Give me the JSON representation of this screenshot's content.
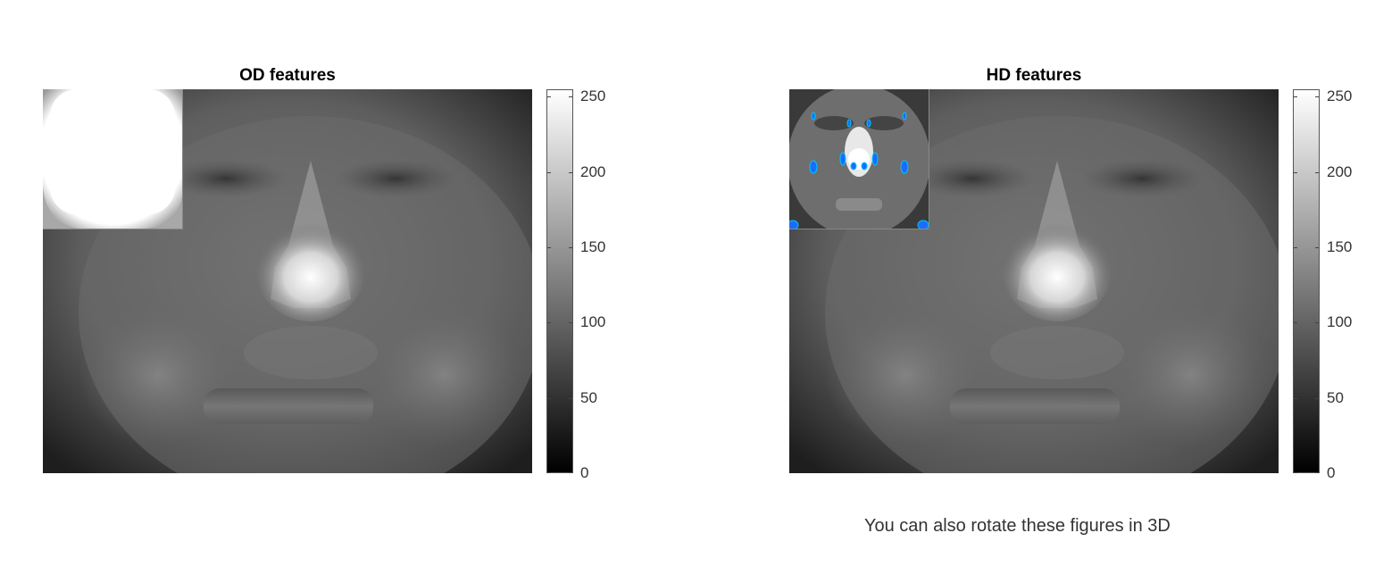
{
  "chart_data": [
    {
      "type": "heatmap",
      "title": "OD features",
      "colormap": "gray",
      "clim": [
        0,
        255
      ],
      "colorbar_ticks": [
        0,
        50,
        100,
        150,
        200,
        250
      ],
      "inset": "saturated white face mask"
    },
    {
      "type": "heatmap",
      "title": "HD features",
      "colormap": "gray",
      "clim": [
        0,
        255
      ],
      "colorbar_ticks": [
        0,
        50,
        100,
        150,
        200,
        250
      ],
      "inset": "face with blue feature markers near eyes, nose and cheeks"
    }
  ],
  "caption": "You can also rotate these figures in 3D",
  "colors": {
    "marker": "#1a6cff",
    "marker_edge": "#00c8ff",
    "background": "#ffffff"
  }
}
